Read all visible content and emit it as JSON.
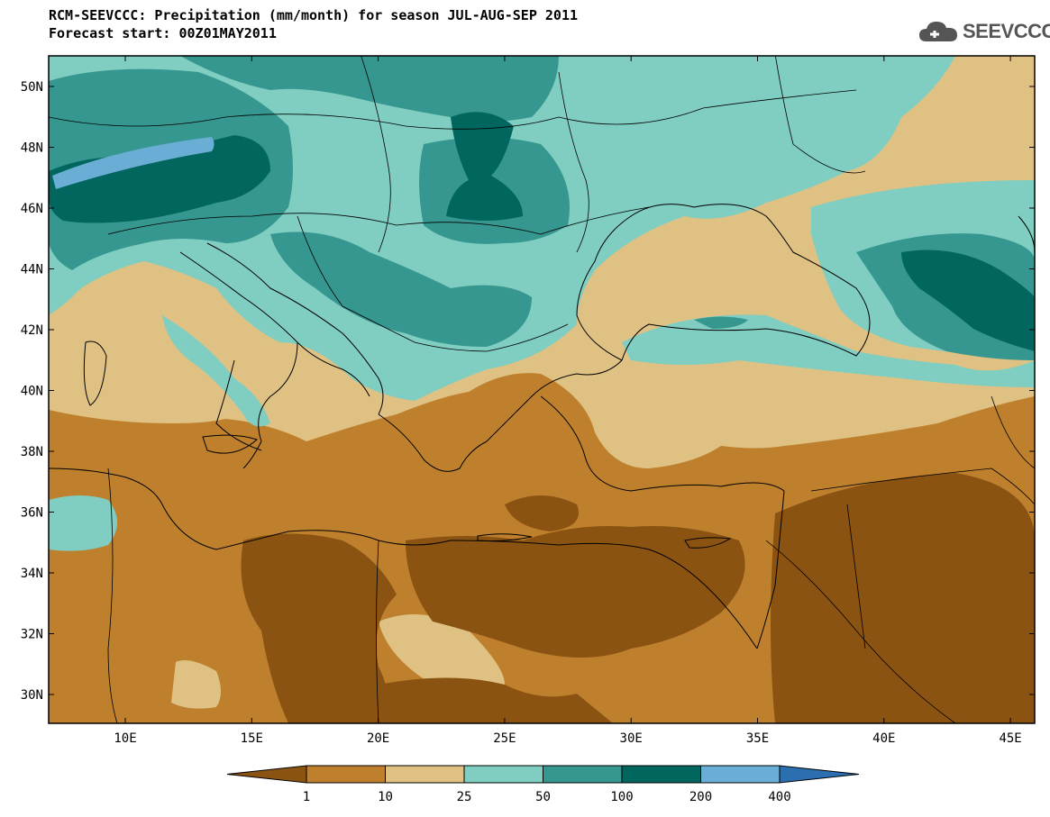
{
  "title_line1": "RCM-SEEVCCC: Precipitation (mm/month) for season JUL-AUG-SEP 2011",
  "title_line2": "Forecast start: 00Z01MAY2011",
  "logo_text": "SEEVCCC",
  "logo_icon": "cloud-icon",
  "lat_labels": [
    "50N",
    "48N",
    "46N",
    "44N",
    "42N",
    "40N",
    "38N",
    "36N",
    "34N",
    "32N",
    "30N"
  ],
  "lon_labels": [
    "10E",
    "15E",
    "20E",
    "25E",
    "30E",
    "35E",
    "40E",
    "45E"
  ],
  "colorbar": {
    "labels": [
      "1",
      "10",
      "25",
      "50",
      "100",
      "200",
      "400"
    ],
    "colors": [
      "#8b5312",
      "#bf802e",
      "#dfc283",
      "#80cdc1",
      "#35978f",
      "#01665e",
      "#6aaed6",
      "#2c6fb0"
    ]
  }
}
